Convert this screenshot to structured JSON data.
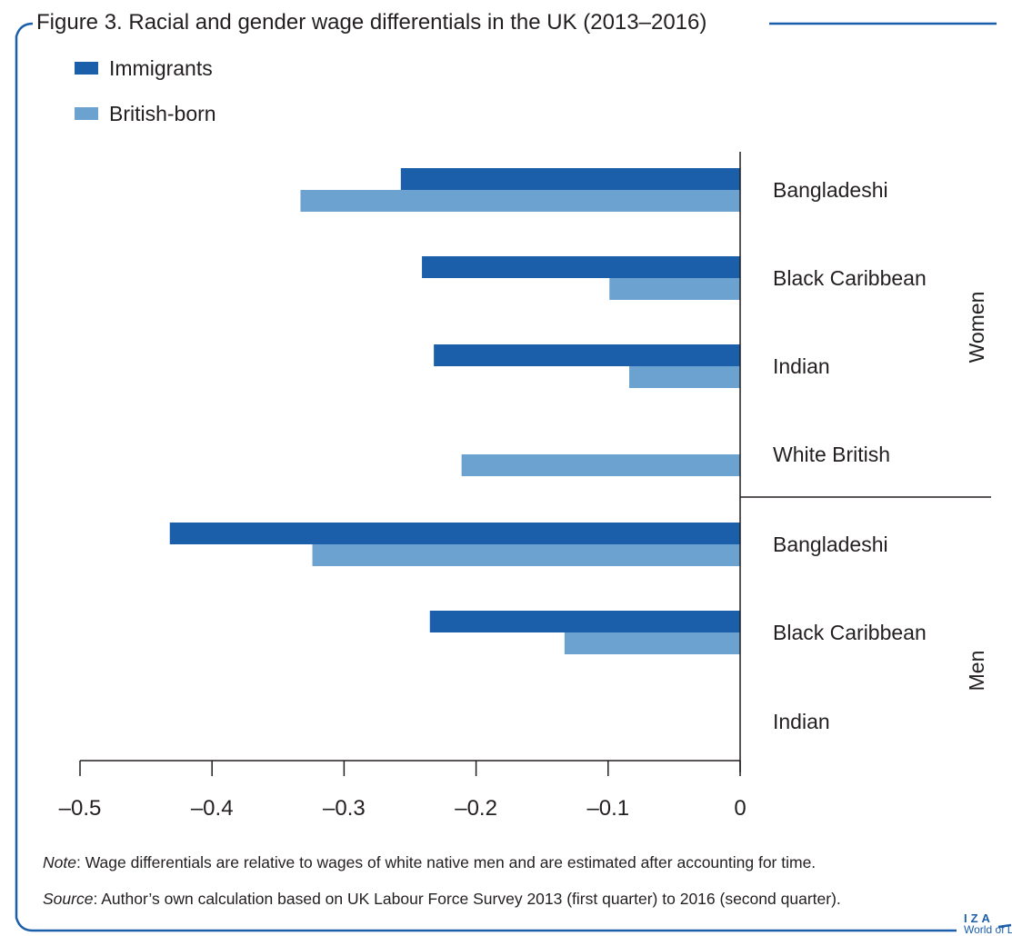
{
  "figure": {
    "title": "Figure 3. Racial and gender wage differentials in the UK (2013–2016)",
    "note_label": "Note",
    "note_text": ": Wage differentials are relative to wages of white native men and are estimated after accounting for time.",
    "source_label": "Source",
    "source_text": ": Author’s own calculation based on UK Labour Force Survey 2013 (first quarter) to 2016 (second quarter).",
    "logo_line1": "IZA",
    "logo_line2": "World of Labor"
  },
  "colors": {
    "immigrants": "#1b5ea9",
    "british_born": "#6ba2d0",
    "frame": "#1b5ea9",
    "axis": "#231f20"
  },
  "chart_data": {
    "type": "bar",
    "orientation": "horizontal",
    "categories": [
      "Bangladeshi",
      "Black Caribbean",
      "Indian",
      "White British",
      "Bangladeshi",
      "Black Caribbean",
      "Indian"
    ],
    "groups": [
      {
        "label": "Women",
        "categories": [
          "Bangladeshi",
          "Black Caribbean",
          "Indian",
          "White British"
        ]
      },
      {
        "label": "Men",
        "categories": [
          "Bangladeshi",
          "Black Caribbean",
          "Indian"
        ]
      }
    ],
    "series": [
      {
        "name": "Immigrants",
        "values": [
          -0.257,
          -0.241,
          -0.232,
          null,
          -0.432,
          -0.235,
          null
        ]
      },
      {
        "name": "British-born",
        "values": [
          -0.333,
          -0.099,
          -0.084,
          -0.211,
          -0.324,
          -0.133,
          null
        ]
      }
    ],
    "xlim": [
      -0.5,
      0
    ],
    "xticks": [
      -0.5,
      -0.4,
      -0.3,
      -0.2,
      -0.1,
      0
    ],
    "xtick_labels": [
      "–0.5",
      "–0.4",
      "–0.3",
      "–0.2",
      "–0.1",
      "0"
    ],
    "legend_position": "top-left",
    "grid": false
  }
}
